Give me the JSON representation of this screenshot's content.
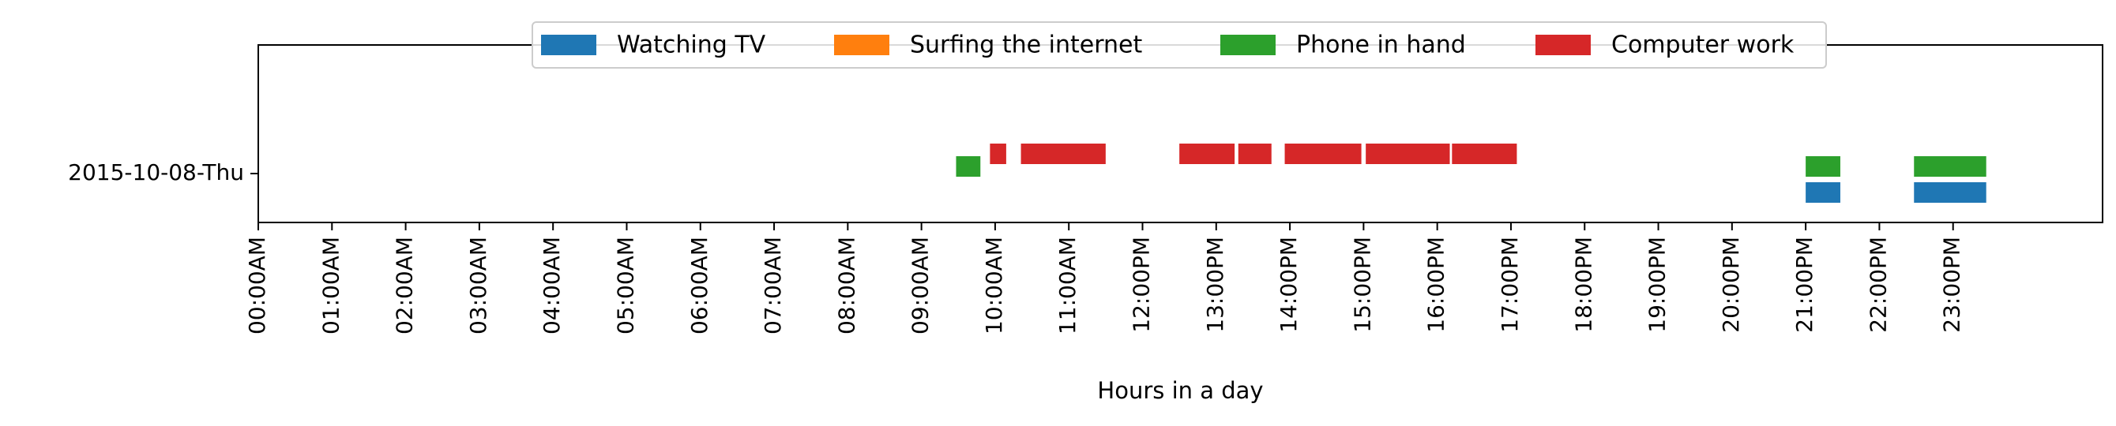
{
  "chart_data": {
    "type": "broken_barh",
    "category": "2015-10-08-Thu",
    "xlabel": "Hours in a day",
    "xlim": [
      0,
      24
    ],
    "x_tick_labels": [
      "00:00AM",
      "01:00AM",
      "02:00AM",
      "03:00AM",
      "04:00AM",
      "05:00AM",
      "06:00AM",
      "07:00AM",
      "08:00AM",
      "09:00AM",
      "10:00AM",
      "11:00AM",
      "12:00PM",
      "13:00PM",
      "14:00PM",
      "15:00PM",
      "16:00PM",
      "17:00PM",
      "18:00PM",
      "19:00PM",
      "20:00PM",
      "21:00PM",
      "22:00PM",
      "23:00PM"
    ],
    "grid": false,
    "legend_position": "top-center",
    "series": [
      {
        "name": "Watching TV",
        "color": "#1f77b4",
        "lane": 0,
        "segments": [
          [
            21.0,
            21.47
          ],
          [
            22.47,
            23.45
          ]
        ]
      },
      {
        "name": "Surfing the internet",
        "color": "#ff7f0e",
        "lane": 1,
        "segments": []
      },
      {
        "name": "Phone in hand",
        "color": "#2ca02c",
        "lane": 2,
        "segments": [
          [
            9.47,
            9.8
          ],
          [
            21.0,
            21.47
          ],
          [
            22.47,
            23.45
          ]
        ]
      },
      {
        "name": "Computer work",
        "color": "#d62728",
        "lane": 3,
        "segments": [
          [
            9.93,
            10.15
          ],
          [
            10.35,
            11.5
          ],
          [
            12.5,
            13.25
          ],
          [
            13.3,
            13.75
          ],
          [
            13.93,
            14.97
          ],
          [
            15.03,
            16.17
          ],
          [
            16.2,
            17.08
          ]
        ]
      }
    ]
  }
}
